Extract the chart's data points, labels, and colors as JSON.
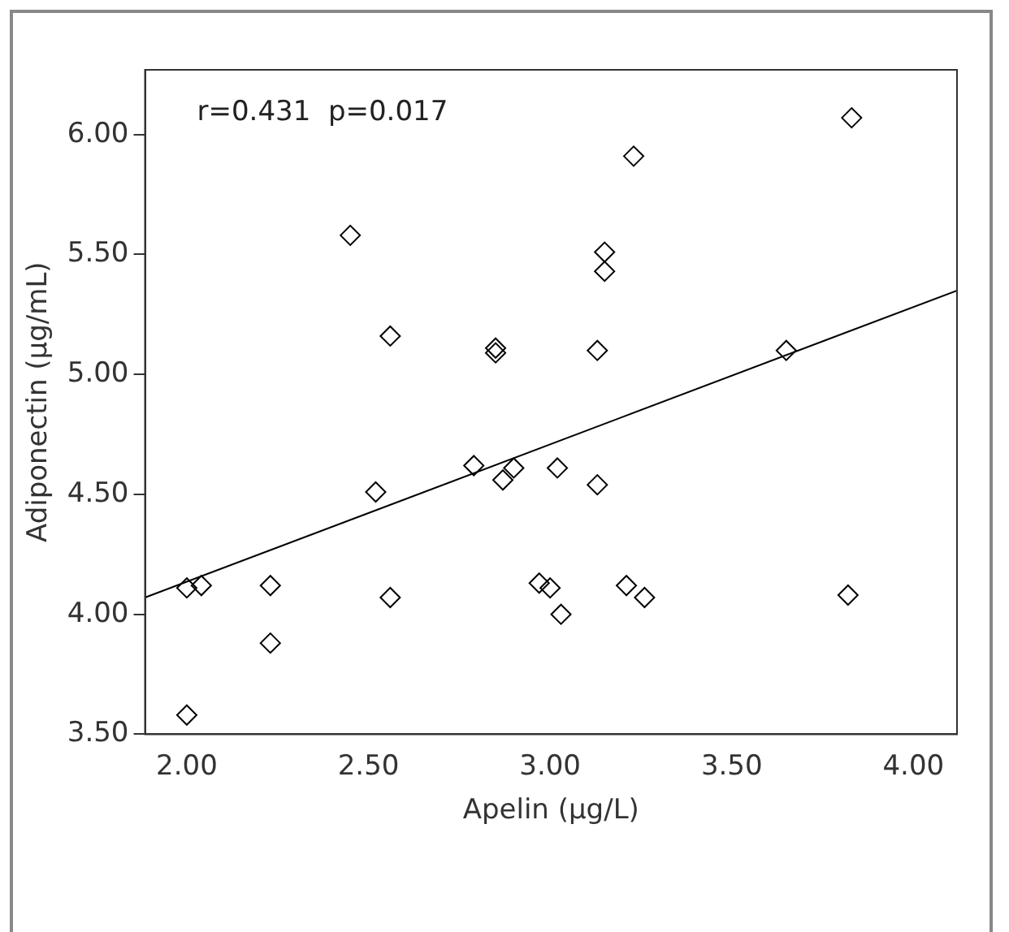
{
  "chart_data": {
    "type": "scatter",
    "xlabel": "Apelin (μg/L)",
    "ylabel": "Adiponectin (μg/mL)",
    "annotations": [
      "r=0.431  p=0.017"
    ],
    "xlim": [
      1.885,
      4.12
    ],
    "ylim": [
      3.5,
      6.27
    ],
    "xticks": [
      {
        "value": 2,
        "label": "2.00"
      },
      {
        "value": 2.5,
        "label": "2.50"
      },
      {
        "value": 3,
        "label": "3.00"
      },
      {
        "value": 3.5,
        "label": "3.50"
      },
      {
        "value": 4,
        "label": "4.00"
      }
    ],
    "yticks": [
      {
        "value": 3.5,
        "label": "3.50"
      },
      {
        "value": 4,
        "label": "4.00"
      },
      {
        "value": 4.5,
        "label": "4.50"
      },
      {
        "value": 5,
        "label": "5.00"
      },
      {
        "value": 5.5,
        "label": "5.50"
      },
      {
        "value": 6,
        "label": "6.00"
      }
    ],
    "grid": false,
    "legend": false,
    "marker": "diamond",
    "series": [
      {
        "color": "#000000",
        "x": [
          2.45,
          2.56,
          2.85,
          2.85,
          2.79,
          2.87,
          2.9,
          3.02,
          2.52,
          2.0,
          2.04,
          2.23,
          2.56,
          2.97,
          3.0,
          3.03,
          2.23,
          2.0,
          3.83,
          3.23,
          3.15,
          3.15,
          3.13,
          3.65,
          3.13,
          3.21,
          3.26,
          3.82
        ],
        "values": [
          5.58,
          5.16,
          5.11,
          5.09,
          4.62,
          4.56,
          4.61,
          4.61,
          4.51,
          4.11,
          4.12,
          4.12,
          4.07,
          4.13,
          4.11,
          4.0,
          3.88,
          3.58,
          6.07,
          5.91,
          5.51,
          5.43,
          5.1,
          5.1,
          4.54,
          4.12,
          4.07,
          4.08
        ]
      },
      {
        "type": "line",
        "color": "#000000",
        "marker": "none",
        "line_style": "solid",
        "x": [
          1.885,
          4.12
        ],
        "values": [
          4.07,
          5.35
        ]
      }
    ]
  }
}
